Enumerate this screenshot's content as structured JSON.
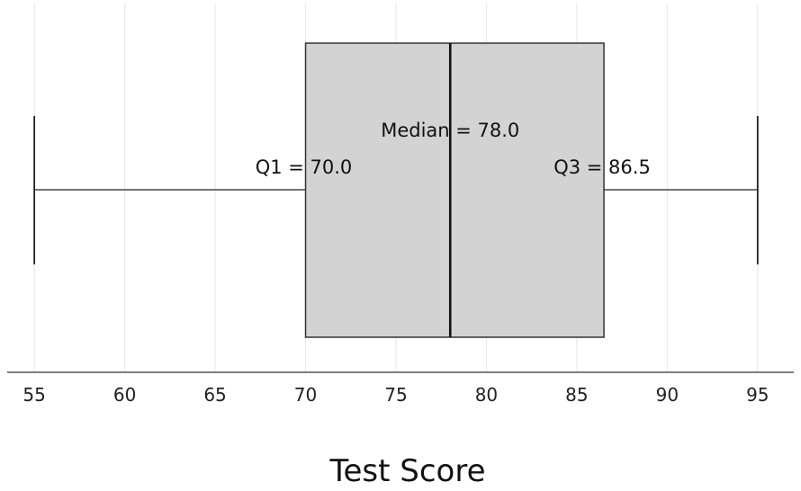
{
  "chart_data": {
    "type": "box",
    "orientation": "horizontal",
    "xlabel": "Test Score",
    "xlim": [
      53.5,
      97
    ],
    "xticks": [
      55,
      60,
      65,
      70,
      75,
      80,
      85,
      90,
      95
    ],
    "grid": true,
    "stats": {
      "min": 55,
      "q1": 70.0,
      "median": 78.0,
      "q3": 86.5,
      "max": 95
    },
    "annotations": {
      "q1": "Q1 = 70.0",
      "median": "Median = 78.0",
      "q3": "Q3 = 86.5"
    },
    "colors": {
      "box_fill": "#d3d3d3",
      "box_edge": "#333333",
      "median_line": "#111111",
      "grid": "#e6e6e6"
    }
  }
}
